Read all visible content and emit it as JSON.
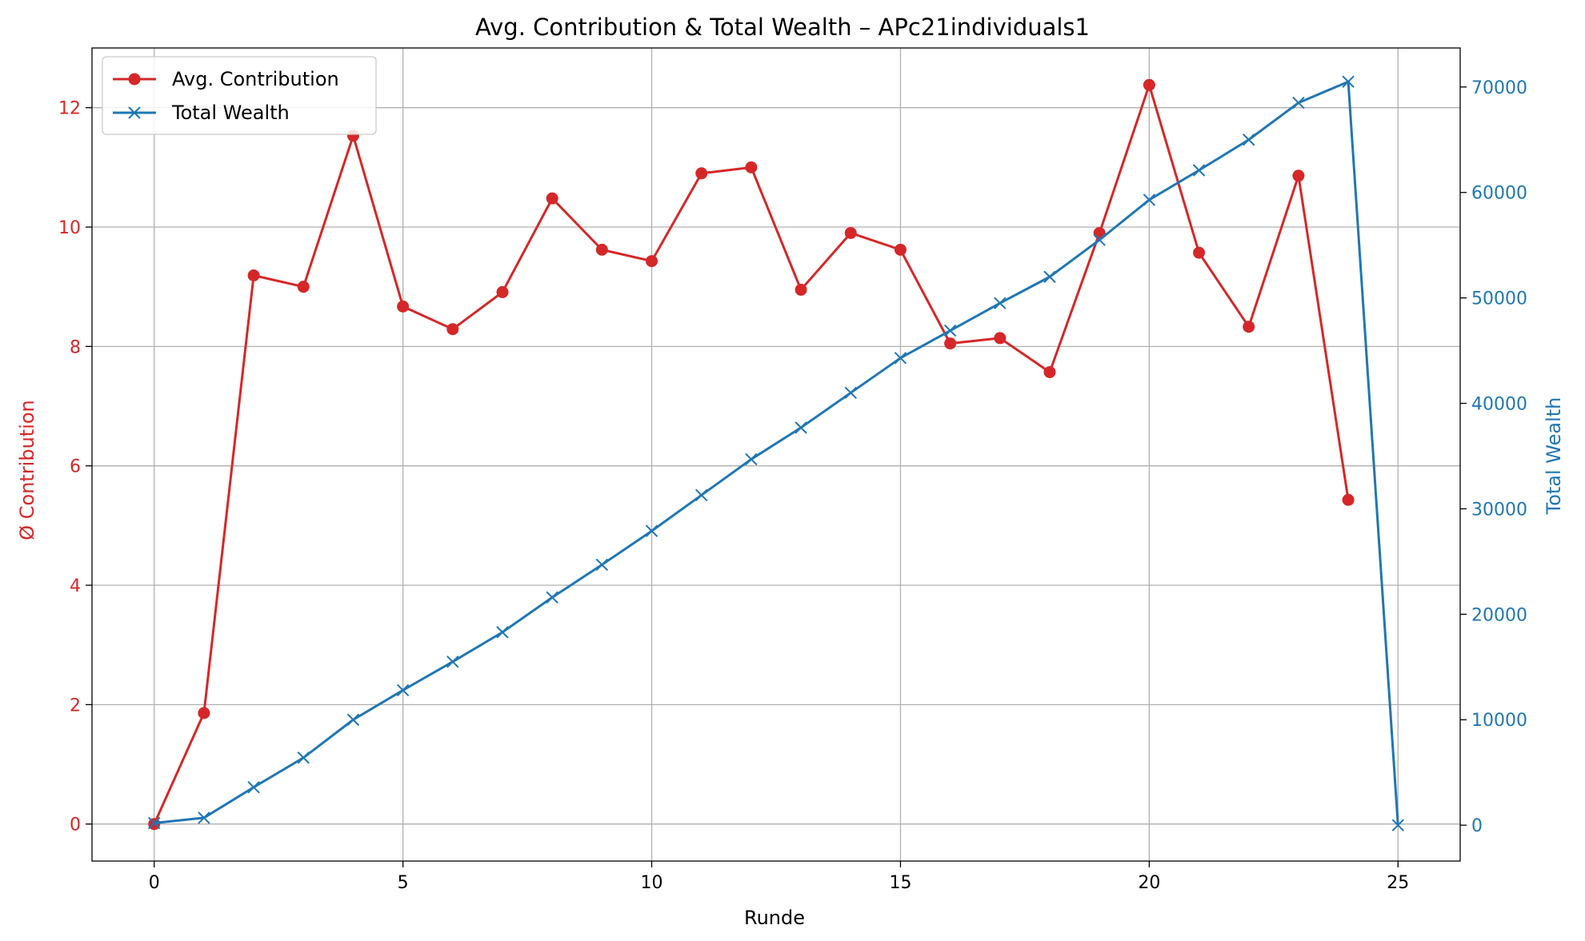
{
  "chart_data": {
    "type": "line",
    "title": "Avg. Contribution & Total Wealth – APc21individuals1",
    "xlabel": "Runde",
    "ylabel_left": "Ø Contribution",
    "ylabel_right": "Total Wealth",
    "xlim": [
      -1.25,
      26.25
    ],
    "ylim_left": [
      -0.62,
      13.0
    ],
    "ylim_right": [
      -3400,
      73700
    ],
    "x_ticks": [
      0,
      5,
      10,
      15,
      20,
      25
    ],
    "y_ticks_left": [
      0,
      2,
      4,
      6,
      8,
      10,
      12
    ],
    "y_ticks_right": [
      0,
      10000,
      20000,
      30000,
      40000,
      50000,
      60000,
      70000
    ],
    "grid": true,
    "legend_position": "upper-left",
    "colors": {
      "contribution": "#d62728",
      "wealth": "#1f77b4",
      "grid": "#b0b0b0",
      "axes": "#000000"
    },
    "series": [
      {
        "name": "Avg. Contribution",
        "axis": "left",
        "marker": "circle",
        "x": [
          0,
          1,
          2,
          3,
          4,
          5,
          6,
          7,
          8,
          9,
          10,
          11,
          12,
          13,
          14,
          15,
          16,
          17,
          18,
          19,
          20,
          21,
          22,
          23,
          24
        ],
        "values": [
          0.0,
          1.86,
          9.19,
          9.0,
          11.53,
          8.67,
          8.29,
          8.91,
          10.48,
          9.62,
          9.43,
          10.9,
          11.0,
          8.95,
          9.9,
          9.62,
          8.05,
          8.14,
          7.57,
          9.9,
          12.38,
          9.57,
          8.33,
          10.86,
          5.43
        ]
      },
      {
        "name": "Total Wealth",
        "axis": "right",
        "marker": "x",
        "x": [
          0,
          1,
          2,
          3,
          4,
          5,
          6,
          7,
          8,
          9,
          10,
          11,
          12,
          13,
          14,
          15,
          16,
          17,
          18,
          19,
          20,
          21,
          22,
          23,
          24,
          25
        ],
        "values": [
          200,
          700,
          3600,
          6400,
          10000,
          12800,
          15500,
          18300,
          21600,
          24700,
          27900,
          31300,
          34700,
          37700,
          41000,
          44300,
          46900,
          49500,
          52000,
          55500,
          59300,
          62100,
          65000,
          68500,
          70500,
          0
        ]
      }
    ]
  }
}
